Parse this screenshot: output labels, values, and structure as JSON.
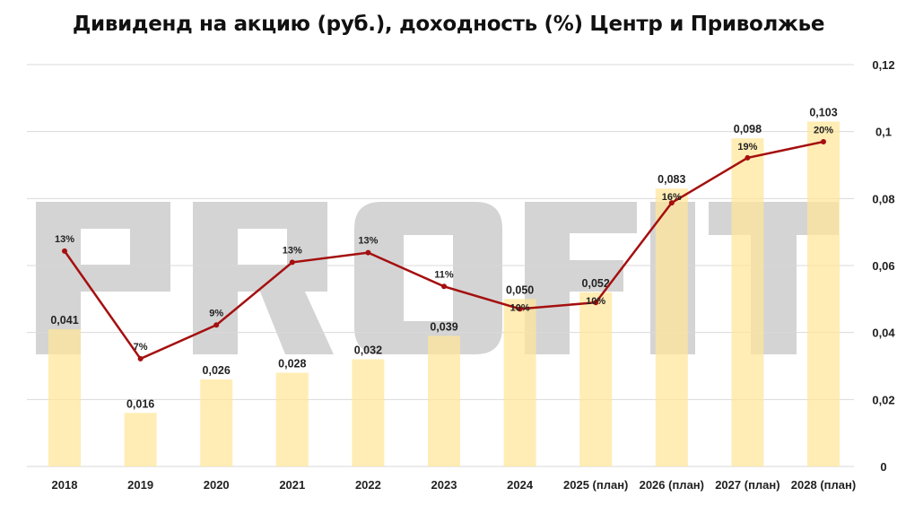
{
  "title": "Дивиденд на акцию (руб.), доходность (%) Центр и Приволжье",
  "watermark": "PROFIT",
  "chart_data": {
    "type": "bar+line",
    "title": "Дивиденд на акцию (руб.), доходность (%) Центр и Приволжье",
    "categories": [
      "2018",
      "2019",
      "2020",
      "2021",
      "2022",
      "2023",
      "2024",
      "2025 (план)",
      "2026 (план)",
      "2027 (план)",
      "2028 (план)"
    ],
    "series": [
      {
        "type": "bar",
        "axis": "right",
        "values": [
          0.041,
          0.016,
          0.026,
          0.028,
          0.032,
          0.039,
          0.05,
          0.052,
          0.083,
          0.098,
          0.103
        ],
        "labels": [
          "0,041",
          "0,016",
          "0,026",
          "0,028",
          "0,032",
          "0,039",
          "0,050",
          "0,052",
          "0,083",
          "0,098",
          "0,103"
        ],
        "color": "#FFE699"
      },
      {
        "type": "line",
        "axis": "hidden-secondary",
        "values": [
          13.4,
          6.7,
          8.8,
          12.7,
          13.3,
          11.2,
          9.8,
          10.2,
          16.4,
          19.2,
          20.2
        ],
        "labels": [
          "13%",
          "7%",
          "9%",
          "13%",
          "13%",
          "11%",
          "10%",
          "10%",
          "16%",
          "19%",
          "20%"
        ],
        "color": "#A50F0F"
      }
    ],
    "y_right": {
      "ylim": [
        0,
        0.12
      ],
      "ticks": [
        "0",
        "0,02",
        "0,04",
        "0,06",
        "0,08",
        "0,1",
        "0,12"
      ]
    },
    "y_secondary_range": [
      0,
      25
    ],
    "grid": true
  }
}
